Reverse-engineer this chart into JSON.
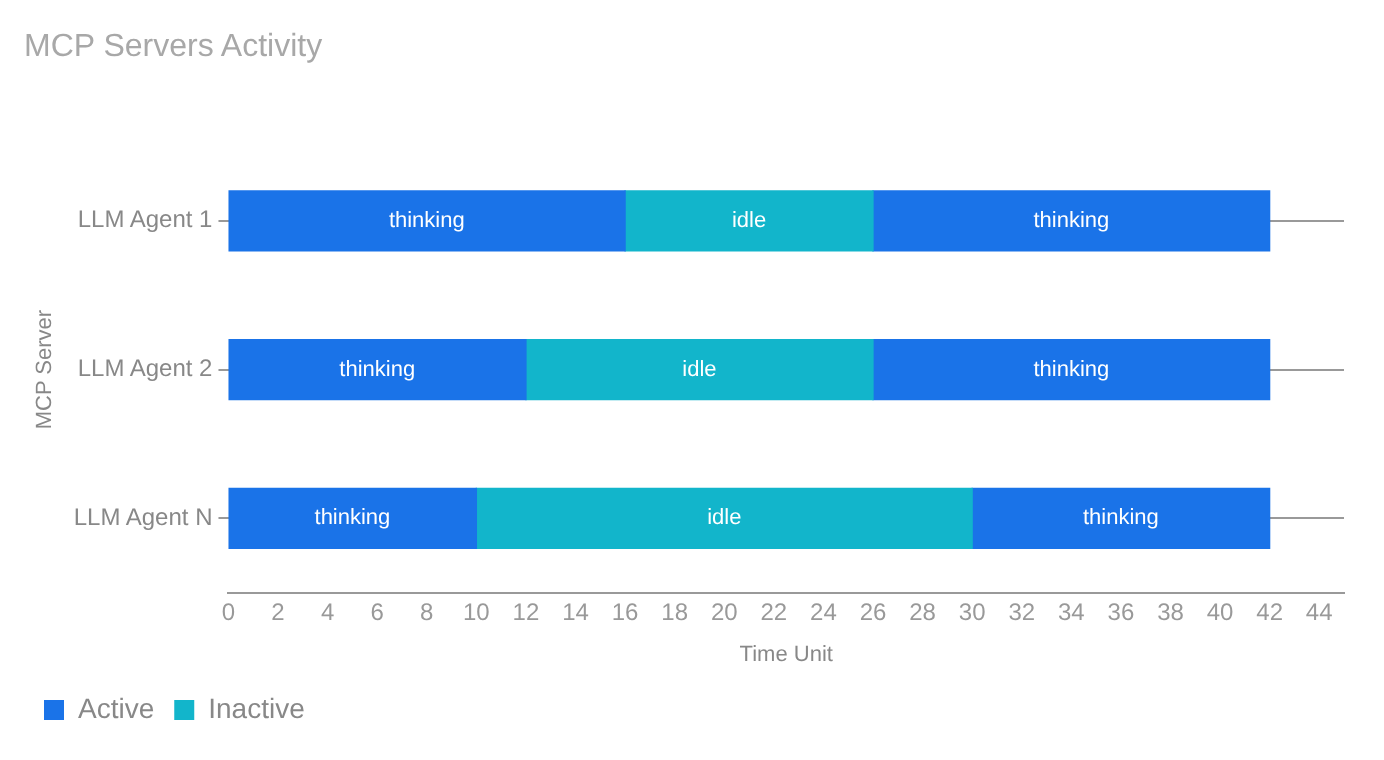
{
  "chart_data": {
    "type": "bar",
    "orientation": "horizontal",
    "stacked": true,
    "title": "MCP Servers Activity",
    "xlabel": "Time Unit",
    "ylabel": "MCP Server",
    "categories": [
      "LLM Agent 1",
      "LLM Agent 2",
      "LLM Agent N"
    ],
    "series": [
      {
        "name": "Active",
        "color": "#1a73e8",
        "values": [
          16,
          12,
          10
        ],
        "value_labels": [
          "thinking",
          "thinking",
          "thinking"
        ]
      },
      {
        "name": "Inactive",
        "color": "#12b5cb",
        "values": [
          10,
          14,
          20
        ],
        "value_labels": [
          "idle",
          "idle",
          "idle"
        ]
      },
      {
        "color": "#1a73e8",
        "values": [
          16,
          16,
          12
        ],
        "value_labels": [
          "thinking",
          "thinking",
          "thinking"
        ]
      }
    ],
    "xlim": [
      0,
      45
    ],
    "xticks": [
      0,
      2,
      4,
      6,
      8,
      10,
      12,
      14,
      16,
      18,
      20,
      22,
      24,
      26,
      28,
      30,
      32,
      34,
      36,
      38,
      40,
      42,
      44
    ],
    "grid": "y",
    "legend": "bottom left"
  }
}
